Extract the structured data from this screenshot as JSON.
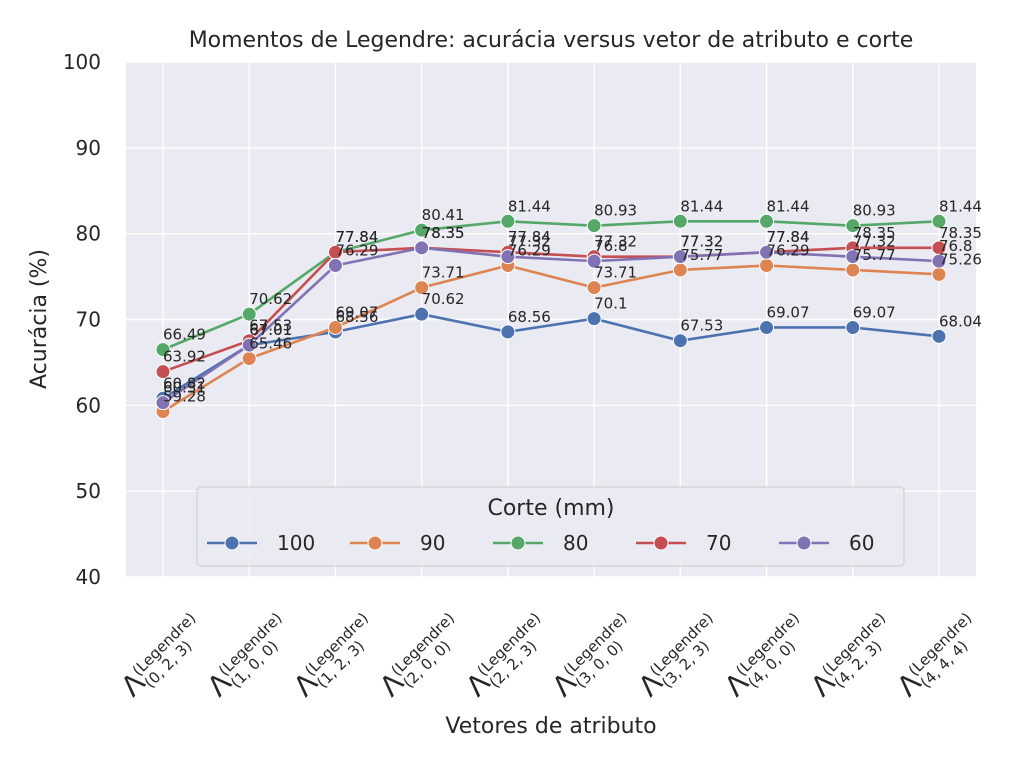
{
  "chart_data": {
    "type": "line",
    "title": "Momentos de Legendre: acurácia versus vetor de atributo e corte",
    "xlabel": "Vetores de atributo",
    "ylabel": "Acurácia (%)",
    "ylim": [
      40,
      100
    ],
    "yticks": [
      40,
      50,
      60,
      70,
      80,
      90,
      100
    ],
    "grid": true,
    "categories": [
      {
        "symbol": "Λ",
        "superscript": "(Legendre)",
        "subscript": "(0, 2, 3)"
      },
      {
        "symbol": "Λ",
        "superscript": "(Legendre)",
        "subscript": "(1, 0, 0)"
      },
      {
        "symbol": "Λ",
        "superscript": "(Legendre)",
        "subscript": "(1, 2, 3)"
      },
      {
        "symbol": "Λ",
        "superscript": "(Legendre)",
        "subscript": "(2, 0, 0)"
      },
      {
        "symbol": "Λ",
        "superscript": "(Legendre)",
        "subscript": "(2, 2, 3)"
      },
      {
        "symbol": "Λ",
        "superscript": "(Legendre)",
        "subscript": "(3, 0, 0)"
      },
      {
        "symbol": "Λ",
        "superscript": "(Legendre)",
        "subscript": "(3, 2, 3)"
      },
      {
        "symbol": "Λ",
        "superscript": "(Legendre)",
        "subscript": "(4, 0, 0)"
      },
      {
        "symbol": "Λ",
        "superscript": "(Legendre)",
        "subscript": "(4, 2, 3)"
      },
      {
        "symbol": "Λ",
        "superscript": "(Legendre)",
        "subscript": "(4, 4, 4)"
      }
    ],
    "series": [
      {
        "name": "100",
        "color": "#4c72b0",
        "values": [
          60.82,
          67.01,
          68.56,
          70.62,
          68.56,
          70.1,
          67.53,
          69.07,
          69.07,
          68.04
        ]
      },
      {
        "name": "90",
        "color": "#dd8452",
        "values": [
          59.28,
          65.46,
          69.07,
          73.71,
          76.29,
          73.71,
          75.77,
          76.29,
          75.77,
          75.26
        ]
      },
      {
        "name": "80",
        "color": "#55a868",
        "values": [
          66.49,
          70.62,
          77.84,
          80.41,
          81.44,
          80.93,
          81.44,
          81.44,
          80.93,
          81.44
        ]
      },
      {
        "name": "70",
        "color": "#c44e52",
        "values": [
          63.92,
          67.53,
          77.84,
          78.35,
          77.84,
          77.32,
          77.32,
          77.84,
          78.35,
          78.35
        ]
      },
      {
        "name": "60",
        "color": "#8172b3",
        "values": [
          60.31,
          67.01,
          76.29,
          78.35,
          77.32,
          76.8,
          77.32,
          77.84,
          77.32,
          76.8
        ]
      }
    ],
    "legend": {
      "title": "Corte (mm)",
      "placement": "lower-center",
      "columns": 5
    },
    "colors": {
      "plot_background": "#eaeaf2",
      "grid": "#ffffff",
      "text": "#262626"
    }
  }
}
